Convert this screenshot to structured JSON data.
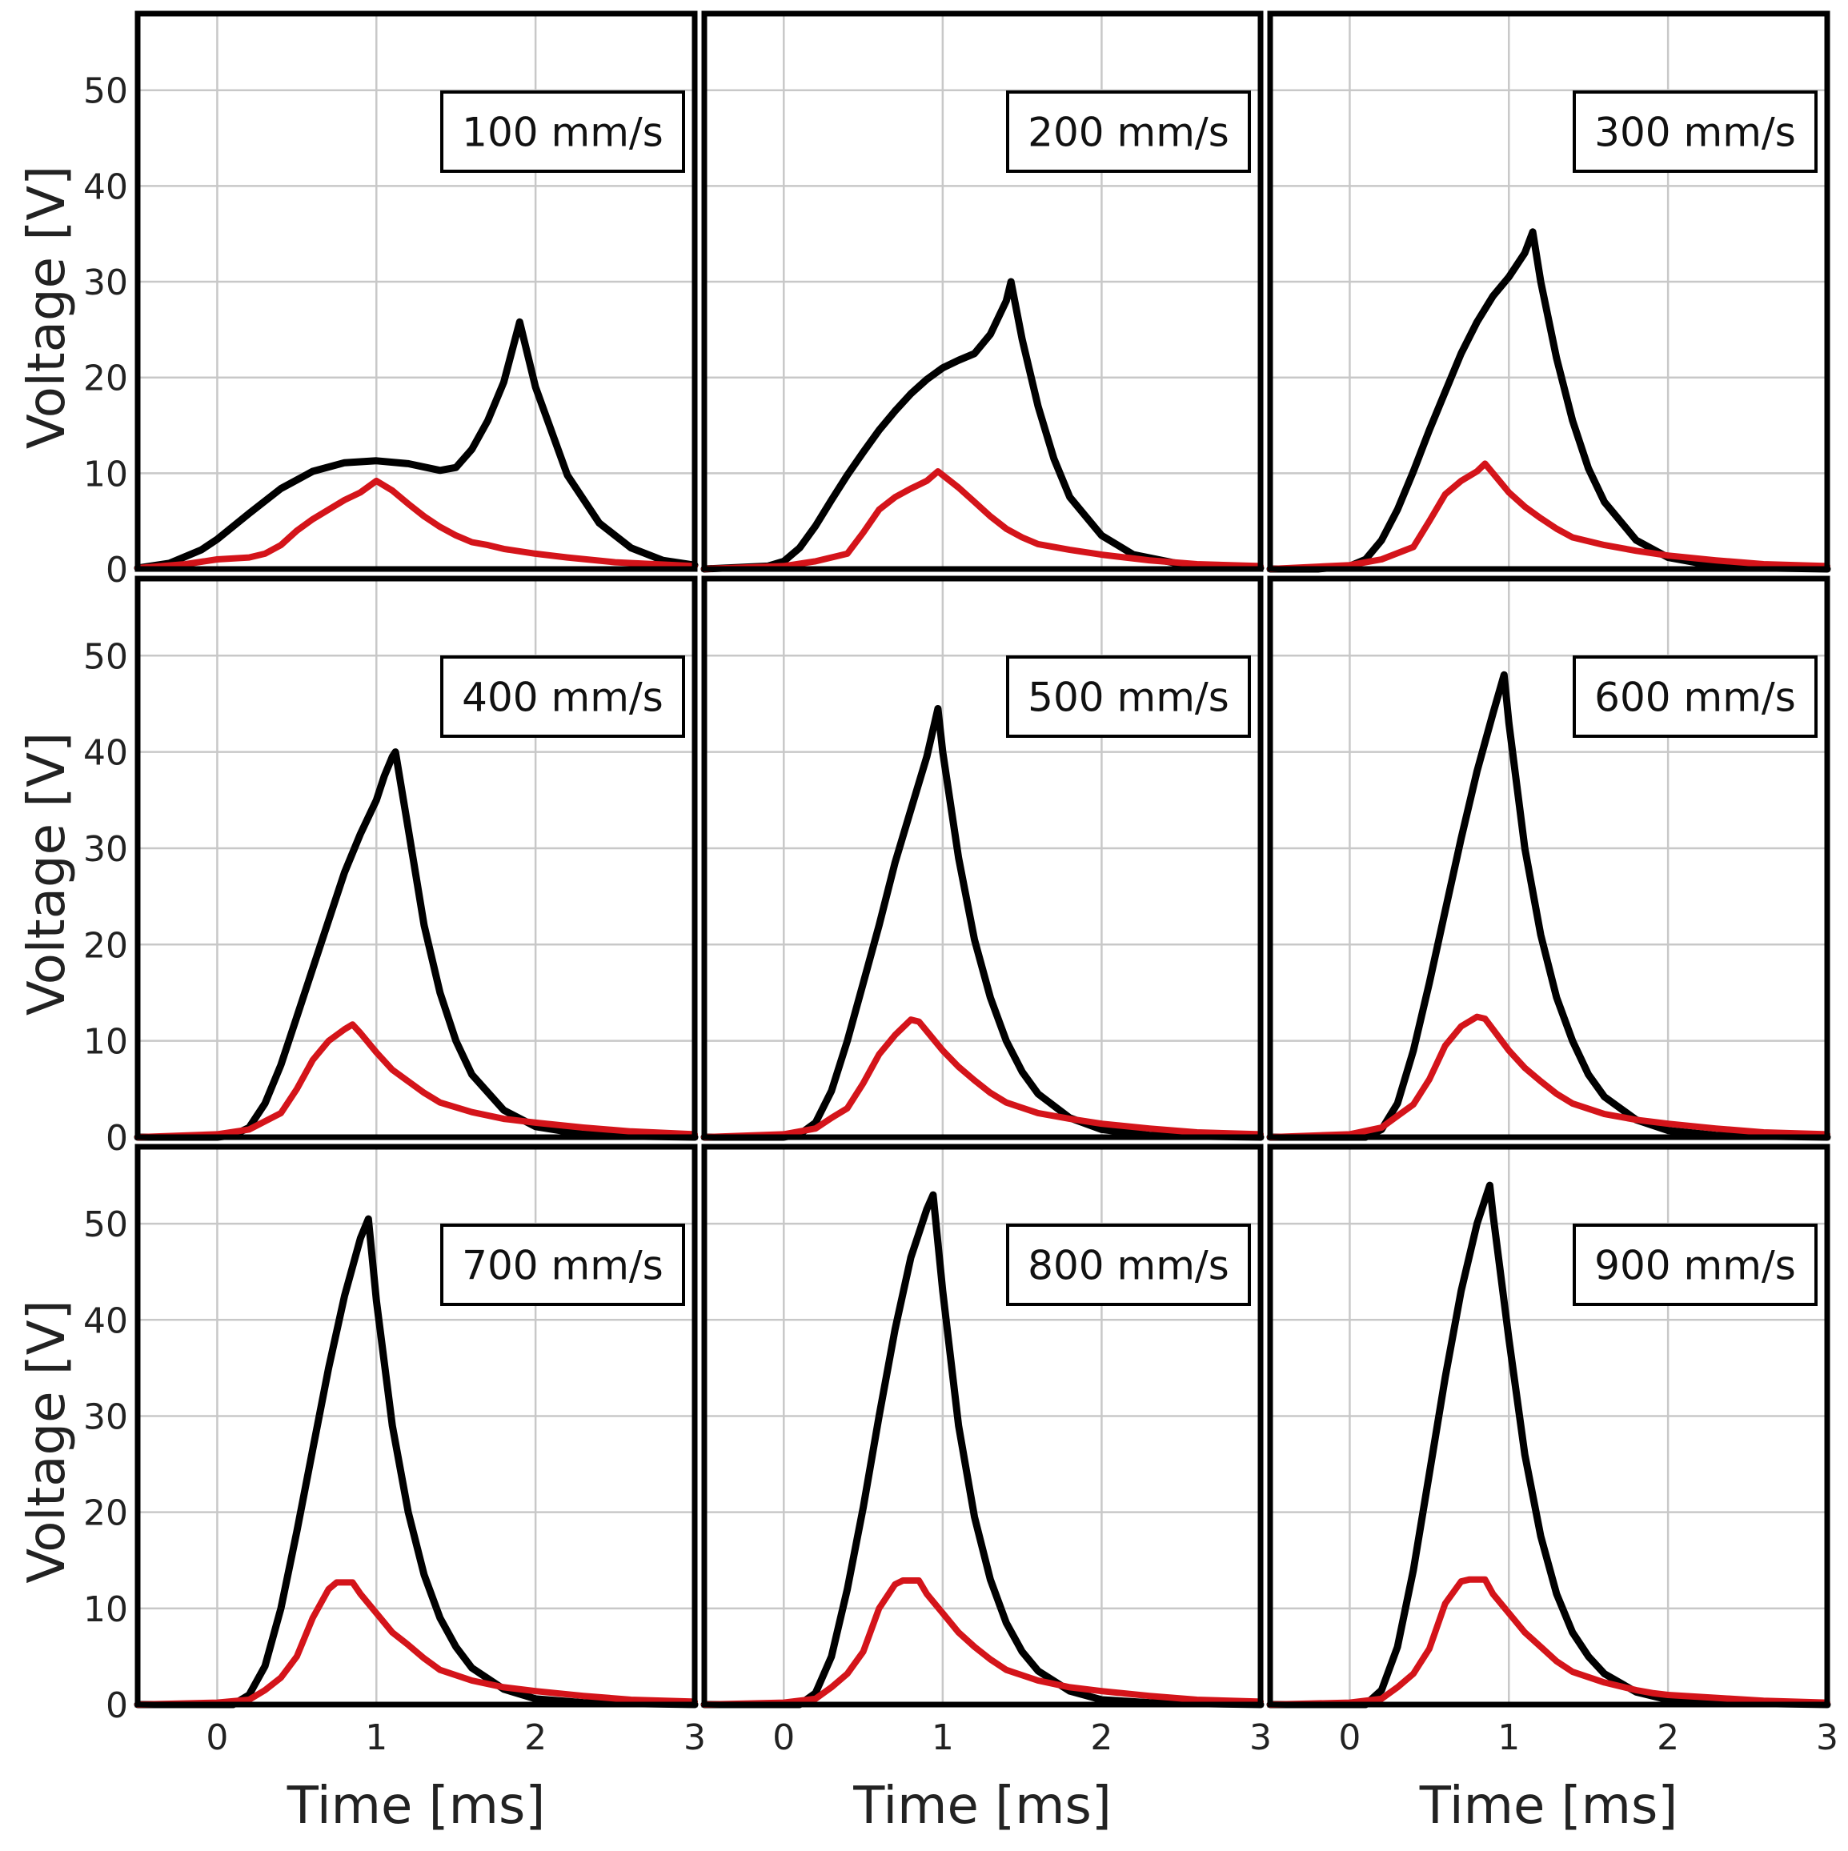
{
  "figure": {
    "colors": {
      "signal_a": "#000000",
      "signal_b": "#d4141a",
      "grid": "#c8c8c8",
      "frame": "#000000"
    }
  },
  "chart_data": [
    {
      "type": "line",
      "annotation": "100 mm/s",
      "xlabel": "",
      "ylabel": "Voltage [V]",
      "xlim": [
        -0.5,
        3
      ],
      "ylim": [
        0,
        58
      ],
      "xticks": [
        "0",
        "1",
        "2",
        "3"
      ],
      "yticks": [
        "0",
        "10",
        "20",
        "30",
        "40",
        "50"
      ],
      "grid": true,
      "series": [
        {
          "color": "#000000",
          "x": [
            -0.5,
            -0.3,
            -0.1,
            0.0,
            0.2,
            0.4,
            0.6,
            0.8,
            1.0,
            1.2,
            1.4,
            1.5,
            1.6,
            1.7,
            1.8,
            1.9,
            2.0,
            2.2,
            2.4,
            2.6,
            2.8,
            3.0
          ],
          "y": [
            0.1,
            0.6,
            2.0,
            3.1,
            5.8,
            8.4,
            10.2,
            11.1,
            11.3,
            11.0,
            10.3,
            10.6,
            12.5,
            15.5,
            19.5,
            25.8,
            19.0,
            9.8,
            4.8,
            2.2,
            0.9,
            0.4
          ]
        },
        {
          "color": "#d4141a",
          "x": [
            -0.5,
            -0.2,
            0.0,
            0.2,
            0.3,
            0.4,
            0.5,
            0.6,
            0.7,
            0.8,
            0.9,
            1.0,
            1.1,
            1.2,
            1.3,
            1.4,
            1.5,
            1.6,
            1.7,
            1.8,
            2.0,
            2.2,
            2.5,
            3.0
          ],
          "y": [
            0.1,
            0.5,
            1.0,
            1.2,
            1.6,
            2.5,
            4.0,
            5.2,
            6.2,
            7.2,
            8.0,
            9.2,
            8.2,
            6.8,
            5.5,
            4.4,
            3.5,
            2.8,
            2.5,
            2.1,
            1.6,
            1.2,
            0.7,
            0.3
          ]
        }
      ]
    },
    {
      "type": "line",
      "annotation": "200 mm/s",
      "xlabel": "",
      "ylabel": "",
      "xlim": [
        -0.5,
        3
      ],
      "ylim": [
        0,
        58
      ],
      "xticks": [
        "0",
        "1",
        "2",
        "3"
      ],
      "yticks": [],
      "grid": true,
      "series": [
        {
          "color": "#000000",
          "x": [
            -0.5,
            -0.1,
            0.0,
            0.1,
            0.2,
            0.3,
            0.4,
            0.5,
            0.6,
            0.7,
            0.8,
            0.9,
            1.0,
            1.1,
            1.2,
            1.3,
            1.4,
            1.43,
            1.5,
            1.6,
            1.7,
            1.8,
            2.0,
            2.2,
            2.5,
            3.0
          ],
          "y": [
            0.0,
            0.3,
            0.8,
            2.2,
            4.5,
            7.2,
            9.8,
            12.2,
            14.5,
            16.5,
            18.3,
            19.8,
            21.0,
            21.8,
            22.5,
            24.5,
            28.0,
            30.0,
            24.0,
            17.0,
            11.5,
            7.5,
            3.5,
            1.5,
            0.5,
            0.1
          ]
        },
        {
          "color": "#d4141a",
          "x": [
            -0.5,
            0.0,
            0.2,
            0.4,
            0.5,
            0.6,
            0.7,
            0.8,
            0.9,
            0.97,
            1.1,
            1.2,
            1.3,
            1.4,
            1.5,
            1.6,
            1.8,
            2.0,
            2.3,
            2.6,
            3.0
          ],
          "y": [
            0.0,
            0.3,
            0.8,
            1.6,
            3.8,
            6.2,
            7.5,
            8.4,
            9.2,
            10.2,
            8.5,
            7.0,
            5.5,
            4.2,
            3.3,
            2.6,
            2.0,
            1.5,
            0.9,
            0.5,
            0.3
          ]
        }
      ]
    },
    {
      "type": "line",
      "annotation": "300 mm/s",
      "xlabel": "",
      "ylabel": "",
      "xlim": [
        -0.5,
        3
      ],
      "ylim": [
        0,
        58
      ],
      "xticks": [
        "0",
        "1",
        "2",
        "3"
      ],
      "yticks": [],
      "grid": true,
      "series": [
        {
          "color": "#000000",
          "x": [
            -0.5,
            -0.2,
            0.0,
            0.1,
            0.2,
            0.3,
            0.4,
            0.5,
            0.6,
            0.7,
            0.8,
            0.9,
            1.0,
            1.1,
            1.15,
            1.2,
            1.3,
            1.4,
            1.5,
            1.6,
            1.8,
            2.0,
            2.3,
            2.6,
            3.0
          ],
          "y": [
            0.0,
            0.0,
            0.3,
            1.0,
            3.0,
            6.2,
            10.2,
            14.5,
            18.5,
            22.5,
            25.8,
            28.5,
            30.5,
            33.0,
            35.2,
            30.0,
            22.0,
            15.5,
            10.5,
            7.0,
            3.0,
            1.2,
            0.3,
            0.1,
            0.0
          ]
        },
        {
          "color": "#d4141a",
          "x": [
            -0.5,
            0.0,
            0.2,
            0.4,
            0.5,
            0.6,
            0.7,
            0.8,
            0.85,
            0.9,
            1.0,
            1.1,
            1.2,
            1.3,
            1.4,
            1.6,
            1.8,
            2.0,
            2.3,
            2.6,
            3.0
          ],
          "y": [
            0.0,
            0.4,
            1.0,
            2.3,
            5.0,
            7.8,
            9.2,
            10.2,
            11.0,
            10.0,
            8.0,
            6.5,
            5.3,
            4.2,
            3.3,
            2.5,
            1.9,
            1.4,
            0.9,
            0.5,
            0.3
          ]
        }
      ]
    },
    {
      "type": "line",
      "annotation": "400 mm/s",
      "xlabel": "",
      "ylabel": "Voltage [V]",
      "xlim": [
        -0.5,
        3
      ],
      "ylim": [
        0,
        58
      ],
      "xticks": [
        "0",
        "1",
        "2",
        "3"
      ],
      "yticks": [
        "0",
        "10",
        "20",
        "30",
        "40",
        "50"
      ],
      "grid": true,
      "series": [
        {
          "color": "#000000",
          "x": [
            -0.5,
            0.0,
            0.1,
            0.2,
            0.3,
            0.4,
            0.5,
            0.6,
            0.7,
            0.8,
            0.9,
            1.0,
            1.05,
            1.1,
            1.12,
            1.2,
            1.3,
            1.4,
            1.5,
            1.6,
            1.8,
            2.0,
            2.3,
            2.6,
            3.0
          ],
          "y": [
            0.0,
            0.0,
            0.2,
            1.0,
            3.5,
            7.5,
            12.5,
            17.5,
            22.5,
            27.5,
            31.5,
            35.0,
            37.5,
            39.5,
            40.0,
            32.0,
            22.0,
            15.0,
            10.0,
            6.5,
            2.8,
            1.1,
            0.3,
            0.1,
            0.0
          ]
        },
        {
          "color": "#d4141a",
          "x": [
            -0.5,
            0.0,
            0.2,
            0.4,
            0.5,
            0.6,
            0.7,
            0.8,
            0.85,
            0.9,
            1.0,
            1.1,
            1.2,
            1.3,
            1.4,
            1.6,
            1.8,
            2.0,
            2.3,
            2.6,
            3.0
          ],
          "y": [
            0.0,
            0.3,
            0.8,
            2.5,
            5.0,
            8.0,
            10.0,
            11.2,
            11.7,
            10.8,
            8.8,
            7.0,
            5.8,
            4.6,
            3.6,
            2.6,
            1.9,
            1.5,
            1.0,
            0.6,
            0.3
          ]
        }
      ]
    },
    {
      "type": "line",
      "annotation": "500 mm/s",
      "xlabel": "",
      "ylabel": "",
      "xlim": [
        -0.5,
        3
      ],
      "ylim": [
        0,
        58
      ],
      "xticks": [
        "0",
        "1",
        "2",
        "3"
      ],
      "yticks": [],
      "grid": true,
      "series": [
        {
          "color": "#000000",
          "x": [
            -0.5,
            0.0,
            0.1,
            0.2,
            0.3,
            0.4,
            0.5,
            0.6,
            0.7,
            0.8,
            0.9,
            0.97,
            1.0,
            1.1,
            1.2,
            1.3,
            1.4,
            1.5,
            1.6,
            1.8,
            2.0,
            2.3,
            2.6,
            3.0
          ],
          "y": [
            0.0,
            0.0,
            0.3,
            1.5,
            4.8,
            10.0,
            16.0,
            22.0,
            28.5,
            34.0,
            39.5,
            44.5,
            40.0,
            29.0,
            20.5,
            14.5,
            10.0,
            6.8,
            4.5,
            2.0,
            0.8,
            0.2,
            0.1,
            0.0
          ]
        },
        {
          "color": "#d4141a",
          "x": [
            -0.5,
            0.0,
            0.2,
            0.3,
            0.4,
            0.5,
            0.6,
            0.7,
            0.8,
            0.85,
            0.9,
            1.0,
            1.1,
            1.2,
            1.3,
            1.4,
            1.6,
            1.8,
            2.0,
            2.3,
            2.6,
            3.0
          ],
          "y": [
            0.0,
            0.3,
            0.9,
            2.0,
            3.0,
            5.6,
            8.6,
            10.6,
            12.2,
            12.0,
            11.0,
            9.0,
            7.3,
            5.9,
            4.6,
            3.6,
            2.5,
            1.9,
            1.4,
            0.9,
            0.5,
            0.3
          ]
        }
      ]
    },
    {
      "type": "line",
      "annotation": "600 mm/s",
      "xlabel": "",
      "ylabel": "",
      "xlim": [
        -0.5,
        3
      ],
      "ylim": [
        0,
        58
      ],
      "xticks": [
        "0",
        "1",
        "2",
        "3"
      ],
      "yticks": [],
      "grid": true,
      "series": [
        {
          "color": "#000000",
          "x": [
            -0.5,
            0.1,
            0.2,
            0.3,
            0.4,
            0.5,
            0.6,
            0.7,
            0.8,
            0.9,
            0.97,
            1.0,
            1.1,
            1.2,
            1.3,
            1.4,
            1.5,
            1.6,
            1.8,
            2.0,
            2.3,
            2.6,
            3.0
          ],
          "y": [
            0.0,
            0.0,
            0.8,
            3.5,
            9.0,
            16.0,
            23.5,
            31.0,
            38.0,
            44.0,
            48.0,
            43.0,
            30.0,
            21.0,
            14.5,
            10.0,
            6.5,
            4.2,
            1.8,
            0.7,
            0.2,
            0.1,
            0.0
          ]
        },
        {
          "color": "#d4141a",
          "x": [
            -0.5,
            0.0,
            0.2,
            0.3,
            0.4,
            0.5,
            0.6,
            0.7,
            0.8,
            0.85,
            0.9,
            1.0,
            1.1,
            1.2,
            1.3,
            1.4,
            1.6,
            1.8,
            2.0,
            2.3,
            2.6,
            3.0
          ],
          "y": [
            0.0,
            0.3,
            1.0,
            2.2,
            3.4,
            6.0,
            9.5,
            11.5,
            12.5,
            12.3,
            11.2,
            9.0,
            7.2,
            5.8,
            4.5,
            3.5,
            2.4,
            1.8,
            1.4,
            0.9,
            0.5,
            0.3
          ]
        }
      ]
    },
    {
      "type": "line",
      "annotation": "700 mm/s",
      "xlabel": "Time [ms]",
      "ylabel": "Voltage [V]",
      "xlim": [
        -0.5,
        3
      ],
      "ylim": [
        0,
        58
      ],
      "xticks": [
        "0",
        "1",
        "2",
        "3"
      ],
      "yticks": [
        "0",
        "10",
        "20",
        "30",
        "40",
        "50"
      ],
      "grid": true,
      "series": [
        {
          "color": "#000000",
          "x": [
            -0.5,
            0.1,
            0.2,
            0.3,
            0.4,
            0.5,
            0.6,
            0.7,
            0.8,
            0.9,
            0.95,
            1.0,
            1.1,
            1.2,
            1.3,
            1.4,
            1.5,
            1.6,
            1.8,
            2.0,
            2.3,
            2.6,
            3.0
          ],
          "y": [
            0.0,
            0.0,
            1.0,
            4.0,
            10.0,
            18.0,
            26.5,
            35.0,
            42.5,
            48.5,
            50.5,
            42.0,
            29.0,
            20.0,
            13.5,
            9.0,
            6.0,
            3.8,
            1.6,
            0.6,
            0.2,
            0.1,
            0.0
          ]
        },
        {
          "color": "#d4141a",
          "x": [
            -0.5,
            0.0,
            0.2,
            0.3,
            0.4,
            0.5,
            0.6,
            0.7,
            0.75,
            0.85,
            0.9,
            1.0,
            1.1,
            1.2,
            1.3,
            1.4,
            1.6,
            1.8,
            2.0,
            2.3,
            2.6,
            3.0
          ],
          "y": [
            0.0,
            0.2,
            0.5,
            1.5,
            2.8,
            5.0,
            9.0,
            12.0,
            12.7,
            12.7,
            11.5,
            9.5,
            7.5,
            6.2,
            4.8,
            3.6,
            2.5,
            1.8,
            1.4,
            0.9,
            0.5,
            0.3
          ]
        }
      ]
    },
    {
      "type": "line",
      "annotation": "800 mm/s",
      "xlabel": "Time [ms]",
      "ylabel": "",
      "xlim": [
        -0.5,
        3
      ],
      "ylim": [
        0,
        58
      ],
      "xticks": [
        "0",
        "1",
        "2",
        "3"
      ],
      "yticks": [],
      "grid": true,
      "series": [
        {
          "color": "#000000",
          "x": [
            -0.5,
            0.1,
            0.2,
            0.3,
            0.4,
            0.5,
            0.6,
            0.7,
            0.8,
            0.9,
            0.94,
            1.0,
            1.1,
            1.2,
            1.3,
            1.4,
            1.5,
            1.6,
            1.8,
            2.0,
            2.3,
            2.6,
            3.0
          ],
          "y": [
            0.0,
            0.0,
            1.2,
            5.0,
            12.0,
            20.5,
            30.0,
            39.0,
            46.5,
            51.5,
            53.0,
            43.0,
            29.0,
            19.5,
            13.0,
            8.5,
            5.5,
            3.5,
            1.4,
            0.5,
            0.2,
            0.1,
            0.0
          ]
        },
        {
          "color": "#d4141a",
          "x": [
            -0.5,
            0.0,
            0.2,
            0.3,
            0.4,
            0.5,
            0.6,
            0.7,
            0.75,
            0.85,
            0.9,
            1.0,
            1.1,
            1.2,
            1.3,
            1.4,
            1.6,
            1.8,
            2.0,
            2.3,
            2.6,
            3.0
          ],
          "y": [
            0.0,
            0.2,
            0.6,
            1.8,
            3.2,
            5.5,
            10.0,
            12.5,
            12.9,
            12.9,
            11.5,
            9.5,
            7.5,
            6.0,
            4.7,
            3.6,
            2.5,
            1.8,
            1.4,
            0.9,
            0.5,
            0.3
          ]
        }
      ]
    },
    {
      "type": "line",
      "annotation": "900 mm/s",
      "xlabel": "Time [ms]",
      "ylabel": "",
      "xlim": [
        -0.5,
        3
      ],
      "ylim": [
        0,
        58
      ],
      "xticks": [
        "0",
        "1",
        "2",
        "3"
      ],
      "yticks": [],
      "grid": true,
      "series": [
        {
          "color": "#000000",
          "x": [
            -0.5,
            0.1,
            0.2,
            0.3,
            0.4,
            0.5,
            0.6,
            0.7,
            0.8,
            0.88,
            0.9,
            1.0,
            1.1,
            1.2,
            1.3,
            1.4,
            1.5,
            1.6,
            1.8,
            2.0,
            2.3,
            2.6,
            3.0
          ],
          "y": [
            0.0,
            0.0,
            1.5,
            6.0,
            14.0,
            24.0,
            34.0,
            43.0,
            50.0,
            54.0,
            51.0,
            38.0,
            26.0,
            17.5,
            11.5,
            7.5,
            5.0,
            3.2,
            1.3,
            0.5,
            0.2,
            0.1,
            0.0
          ]
        },
        {
          "color": "#d4141a",
          "x": [
            -0.5,
            0.0,
            0.2,
            0.3,
            0.4,
            0.5,
            0.6,
            0.7,
            0.75,
            0.85,
            0.9,
            1.0,
            1.1,
            1.2,
            1.3,
            1.4,
            1.6,
            1.8,
            1.9,
            2.0,
            2.3,
            2.6,
            3.0
          ],
          "y": [
            0.0,
            0.2,
            0.6,
            1.8,
            3.2,
            5.8,
            10.5,
            12.8,
            13.0,
            13.0,
            11.5,
            9.5,
            7.5,
            6.0,
            4.5,
            3.4,
            2.3,
            1.5,
            1.2,
            1.0,
            0.7,
            0.4,
            0.2
          ]
        }
      ]
    }
  ]
}
